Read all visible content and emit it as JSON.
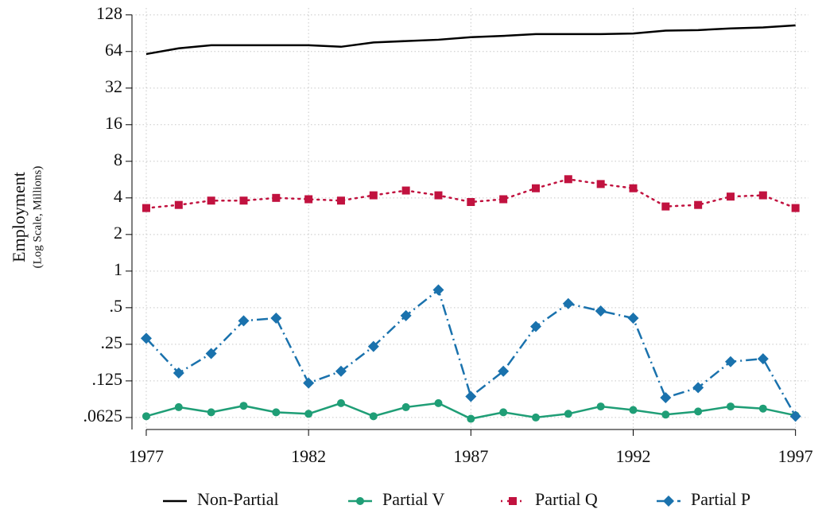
{
  "chart_data": {
    "type": "line",
    "y_label": "Employment",
    "y_sublabel": "(Log Scale, Millions)",
    "x": [
      1977,
      1978,
      1979,
      1980,
      1981,
      1982,
      1983,
      1984,
      1985,
      1986,
      1987,
      1988,
      1989,
      1990,
      1991,
      1992,
      1993,
      1994,
      1995,
      1996,
      1997
    ],
    "series": [
      {
        "name": "Non-Partial",
        "color": "#000000",
        "marker": "none",
        "dash": "solid",
        "values": [
          61,
          68,
          72,
          72,
          72,
          72,
          70,
          76,
          78,
          80,
          84,
          86,
          89,
          89,
          89,
          90,
          95,
          96,
          99,
          101,
          105
        ]
      },
      {
        "name": "Partial V",
        "color": "#1f9e76",
        "marker": "circle",
        "dash": "solid",
        "values": [
          0.064,
          0.076,
          0.069,
          0.078,
          0.069,
          0.067,
          0.082,
          0.064,
          0.076,
          0.082,
          0.061,
          0.069,
          0.0625,
          0.067,
          0.077,
          0.072,
          0.066,
          0.07,
          0.077,
          0.074,
          0.065
        ]
      },
      {
        "name": "Partial Q",
        "color": "#c1123f",
        "marker": "square",
        "dash": "dot",
        "values": [
          3.3,
          3.5,
          3.8,
          3.8,
          4.0,
          3.9,
          3.8,
          4.2,
          4.6,
          4.2,
          3.7,
          3.9,
          4.8,
          5.7,
          5.2,
          4.8,
          3.4,
          3.5,
          4.1,
          4.2,
          3.3
        ]
      },
      {
        "name": "Partial P",
        "color": "#1a72ad",
        "marker": "diamond",
        "dash": "dashdot",
        "values": [
          0.28,
          0.145,
          0.21,
          0.39,
          0.41,
          0.12,
          0.15,
          0.24,
          0.43,
          0.7,
          0.093,
          0.15,
          0.35,
          0.54,
          0.47,
          0.41,
          0.091,
          0.11,
          0.18,
          0.19,
          0.064
        ]
      }
    ],
    "log_scale_y": true,
    "log_base": 2,
    "xlim": [
      1976.56,
      1997.4
    ],
    "xticks": [
      1977,
      1982,
      1987,
      1992,
      1997
    ],
    "ylim": [
      0.0498,
      146
    ],
    "yticks": [
      128,
      64,
      32,
      16,
      8,
      4,
      2,
      1,
      {
        "value": 0.5,
        "label": ".5"
      },
      {
        "value": 0.25,
        "label": ".25"
      },
      {
        "value": 0.125,
        "label": ".125"
      },
      {
        "value": 0.0625,
        "label": ".0625"
      }
    ],
    "grid": true,
    "legend_position": "bottom"
  }
}
